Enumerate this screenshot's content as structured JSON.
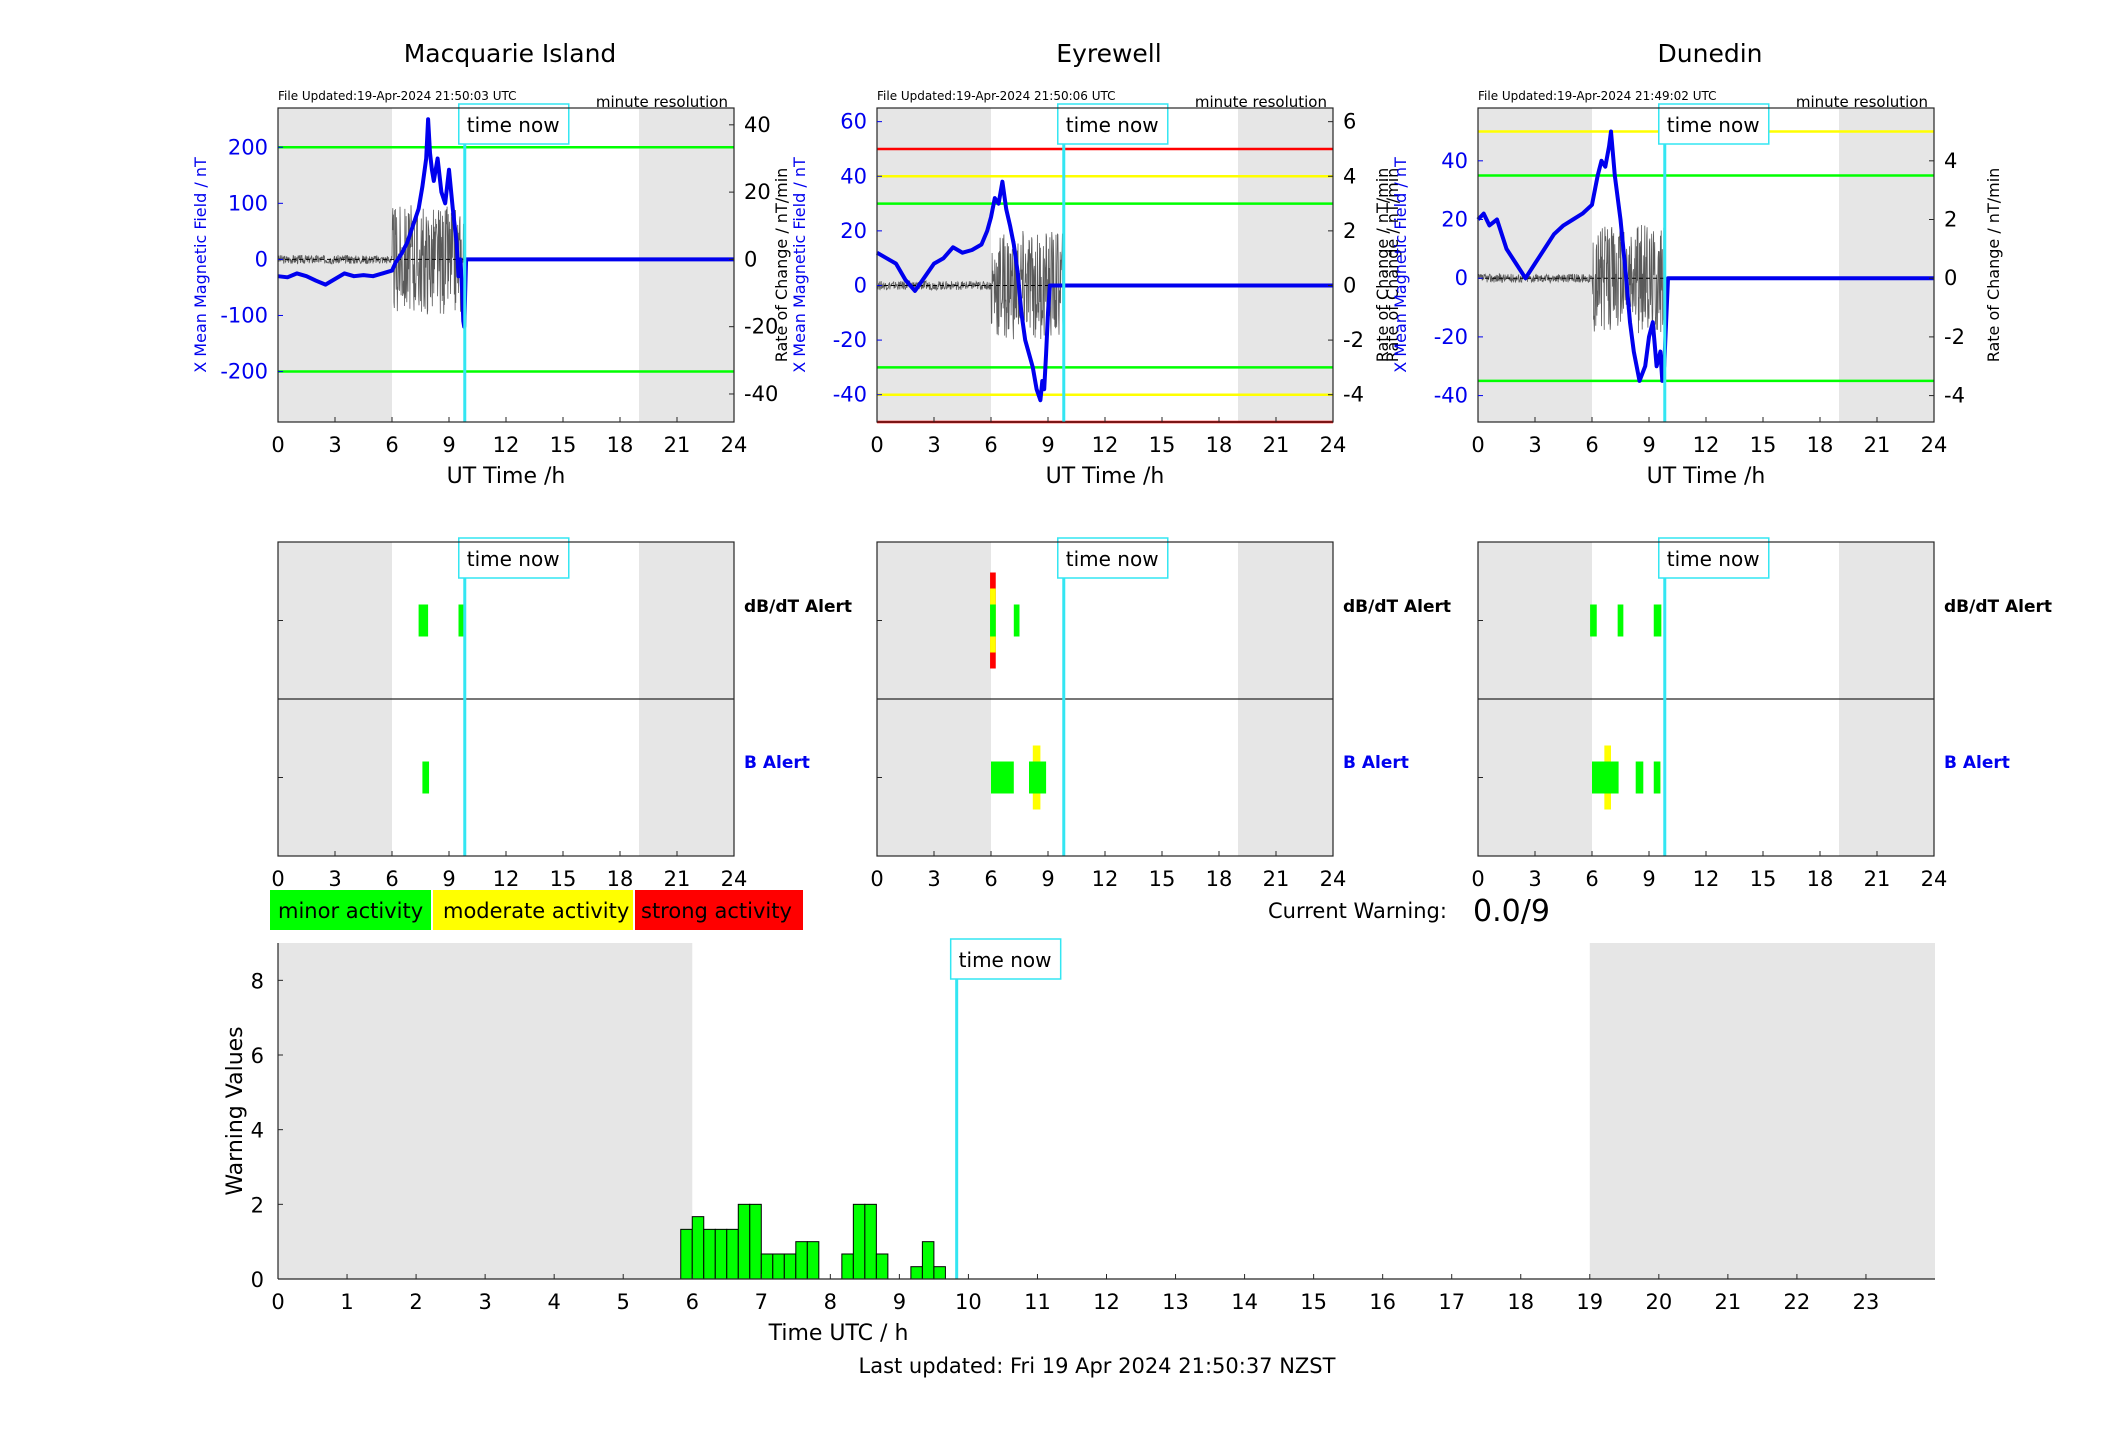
{
  "colors": {
    "x_field": "#0000ee",
    "roc_trace": "#5a5a5a",
    "time_now": "#33e6f2",
    "minor": "#00ff00",
    "moderate": "#ffff00",
    "strong": "#ff0000",
    "night_shade": "#e6e6e6"
  },
  "time_now_label": "time now",
  "time_now_hour": 9.83,
  "legend": {
    "minor": "minor activity",
    "moderate": "moderate activity",
    "strong": "strong activity"
  },
  "current_warning": {
    "label": "Current Warning:",
    "value": "0.0/9"
  },
  "footer": "Last updated: Fri 19 Apr 2024 21:50:37 NZST",
  "chart_data": [
    {
      "type": "line",
      "station": "Macquarie Island",
      "title": "Macquarie Island",
      "file_updated": "File Updated:19-Apr-2024 21:50:03 UTC",
      "resolution": "minute resolution",
      "xlabel": "UT Time /h",
      "ylabel_left": "X Mean Magnetic Field / nT",
      "ylabel_right": "",
      "xlim": [
        0,
        24
      ],
      "ylim_left": [
        -290,
        270
      ],
      "ylim_right": [
        -48.33,
        45
      ],
      "x_ticks": [
        0,
        3,
        6,
        9,
        12,
        15,
        18,
        21,
        24
      ],
      "y_ticks_left": [
        -200,
        -100,
        0,
        100,
        200
      ],
      "y_ticks_right": [
        -40,
        -20,
        0,
        20,
        40
      ],
      "night_shading": [
        [
          0,
          6
        ],
        [
          19,
          24
        ]
      ],
      "threshold_lines": [
        {
          "value": 200,
          "level": "minor"
        },
        {
          "value": -200,
          "level": "minor"
        }
      ],
      "series": [
        {
          "axis": "left",
          "color_key": "x_field",
          "x": [
            0,
            0.5,
            1,
            1.5,
            2,
            2.5,
            3,
            3.5,
            4,
            4.5,
            5,
            5.5,
            6,
            6.2,
            6.5,
            6.8,
            7,
            7.2,
            7.4,
            7.6,
            7.8,
            7.9,
            8,
            8.1,
            8.2,
            8.4,
            8.6,
            8.8,
            9,
            9.2,
            9.4,
            9.5,
            9.6,
            9.7,
            9.75,
            9.8,
            9.9,
            10,
            12,
            15,
            18,
            21,
            24
          ],
          "y": [
            -30,
            -32,
            -25,
            -30,
            -38,
            -45,
            -35,
            -25,
            -30,
            -28,
            -30,
            -25,
            -20,
            -5,
            10,
            30,
            50,
            70,
            90,
            130,
            180,
            250,
            190,
            160,
            140,
            180,
            120,
            100,
            160,
            90,
            30,
            -30,
            0,
            -60,
            -110,
            -120,
            0,
            0,
            0,
            0,
            0,
            0,
            0
          ]
        }
      ]
    },
    {
      "type": "line",
      "station": "Eyrewell",
      "title": "Eyrewell",
      "file_updated": "File Updated:19-Apr-2024 21:50:06 UTC",
      "resolution": "minute resolution",
      "xlabel": "UT Time /h",
      "ylabel_left": "X Mean Magnetic Field / nT",
      "ylabel_right": "Rate of Change / nT/min",
      "ylabel_left_neighbor": "Rate of Change / nT/min",
      "xlim": [
        0,
        24
      ],
      "ylim_left": [
        -50,
        65
      ],
      "ylim_right": [
        -5,
        6.5
      ],
      "x_ticks": [
        0,
        3,
        6,
        9,
        12,
        15,
        18,
        21,
        24
      ],
      "y_ticks_left": [
        -40,
        -20,
        0,
        20,
        40,
        60
      ],
      "y_ticks_right": [
        -4,
        -2,
        0,
        2,
        4,
        6
      ],
      "night_shading": [
        [
          0,
          6
        ],
        [
          19,
          24
        ]
      ],
      "threshold_lines": [
        {
          "value": 50,
          "level": "strong"
        },
        {
          "value": 40,
          "level": "moderate"
        },
        {
          "value": 30,
          "level": "minor"
        },
        {
          "value": -30,
          "level": "minor"
        },
        {
          "value": -40,
          "level": "moderate"
        },
        {
          "value": -50,
          "level": "strong"
        }
      ],
      "series": [
        {
          "axis": "left",
          "color_key": "x_field",
          "x": [
            0,
            0.5,
            1,
            1.5,
            2,
            2.5,
            3,
            3.5,
            4,
            4.5,
            5,
            5.5,
            5.8,
            6,
            6.2,
            6.4,
            6.6,
            6.8,
            7,
            7.2,
            7.4,
            7.6,
            7.8,
            8,
            8.2,
            8.4,
            8.6,
            8.7,
            8.8,
            8.9,
            9,
            9.1,
            10,
            12,
            15,
            18,
            21,
            24
          ],
          "y": [
            12,
            10,
            8,
            2,
            -2,
            3,
            8,
            10,
            14,
            12,
            13,
            15,
            20,
            25,
            32,
            30,
            38,
            28,
            22,
            15,
            5,
            -10,
            -20,
            -25,
            -30,
            -38,
            -42,
            -35,
            -38,
            -25,
            -10,
            0,
            0,
            0,
            0,
            0,
            0,
            0
          ]
        }
      ]
    },
    {
      "type": "line",
      "station": "Dunedin",
      "title": "Dunedin",
      "file_updated": "File Updated:19-Apr-2024 21:49:02 UTC",
      "resolution": "minute resolution",
      "xlabel": "UT Time /h",
      "ylabel_left": "X Mean Magnetic Field / nT",
      "ylabel_right": "Rate of Change / nT/min",
      "ylabel_left_neighbor": "Rate of Change / nT/min",
      "xlim": [
        0,
        24
      ],
      "ylim_left": [
        -49,
        58
      ],
      "ylim_right": [
        -4.9,
        5.8
      ],
      "x_ticks": [
        0,
        3,
        6,
        9,
        12,
        15,
        18,
        21,
        24
      ],
      "y_ticks_left": [
        -40,
        -20,
        0,
        20,
        40
      ],
      "y_ticks_right": [
        -4,
        -2,
        0,
        2,
        4
      ],
      "night_shading": [
        [
          0,
          6
        ],
        [
          19,
          24
        ]
      ],
      "threshold_lines": [
        {
          "value": 50,
          "level": "moderate"
        },
        {
          "value": 35,
          "level": "minor"
        },
        {
          "value": -35,
          "level": "minor"
        }
      ],
      "series": [
        {
          "axis": "left",
          "color_key": "x_field",
          "x": [
            0,
            0.3,
            0.6,
            1,
            1.5,
            2,
            2.5,
            3,
            3.5,
            4,
            4.5,
            5,
            5.5,
            6,
            6.3,
            6.5,
            6.7,
            6.9,
            7,
            7.2,
            7.5,
            7.8,
            8,
            8.2,
            8.5,
            8.8,
            9,
            9.2,
            9.4,
            9.6,
            9.7,
            9.8,
            10,
            12,
            15,
            18,
            21,
            24
          ],
          "y": [
            20,
            22,
            18,
            20,
            10,
            5,
            0,
            5,
            10,
            15,
            18,
            20,
            22,
            25,
            35,
            40,
            38,
            45,
            50,
            35,
            20,
            0,
            -15,
            -25,
            -35,
            -30,
            -20,
            -15,
            -30,
            -25,
            -35,
            -30,
            0,
            0,
            0,
            0,
            0,
            0
          ]
        }
      ]
    },
    {
      "type": "bar",
      "station": "Macquarie Island",
      "alerts": true,
      "xlim": [
        0,
        24
      ],
      "x_ticks": [
        0,
        3,
        6,
        9,
        12,
        15,
        18,
        21,
        24
      ],
      "rows": [
        "dB/dT Alert",
        "B Alert"
      ],
      "night_shading": [
        [
          0,
          6
        ],
        [
          19,
          24
        ]
      ],
      "segments": [
        {
          "row": 0,
          "start": 7.4,
          "end": 7.9,
          "level": "minor",
          "half_height": 1
        },
        {
          "row": 0,
          "start": 9.5,
          "end": 9.8,
          "level": "minor",
          "half_height": 1
        },
        {
          "row": 1,
          "start": 7.6,
          "end": 7.95,
          "level": "minor",
          "half_height": 1
        }
      ]
    },
    {
      "type": "bar",
      "station": "Eyrewell",
      "alerts": true,
      "xlim": [
        0,
        24
      ],
      "x_ticks": [
        0,
        3,
        6,
        9,
        12,
        15,
        18,
        21,
        24
      ],
      "rows": [
        "dB/dT Alert",
        "B Alert"
      ],
      "night_shading": [
        [
          0,
          6
        ],
        [
          19,
          24
        ]
      ],
      "segments": [
        {
          "row": 0,
          "start": 5.95,
          "end": 6.25,
          "level": "strong",
          "half_height": 3
        },
        {
          "row": 0,
          "start": 5.95,
          "end": 6.25,
          "level": "moderate",
          "half_height": 2
        },
        {
          "row": 0,
          "start": 5.95,
          "end": 6.25,
          "level": "minor",
          "half_height": 1
        },
        {
          "row": 0,
          "start": 7.2,
          "end": 7.5,
          "level": "minor",
          "half_height": 1
        },
        {
          "row": 1,
          "start": 6.0,
          "end": 7.2,
          "level": "minor",
          "half_height": 1
        },
        {
          "row": 1,
          "start": 8.2,
          "end": 8.6,
          "level": "moderate",
          "half_height": 2
        },
        {
          "row": 1,
          "start": 8.0,
          "end": 8.9,
          "level": "minor",
          "half_height": 1
        }
      ]
    },
    {
      "type": "bar",
      "station": "Dunedin",
      "alerts": true,
      "xlim": [
        0,
        24
      ],
      "x_ticks": [
        0,
        3,
        6,
        9,
        12,
        15,
        18,
        21,
        24
      ],
      "rows": [
        "dB/dT Alert",
        "B Alert"
      ],
      "night_shading": [
        [
          0,
          6
        ],
        [
          19,
          24
        ]
      ],
      "segments": [
        {
          "row": 0,
          "start": 5.9,
          "end": 6.25,
          "level": "minor",
          "half_height": 1
        },
        {
          "row": 0,
          "start": 7.35,
          "end": 7.65,
          "level": "minor",
          "half_height": 1
        },
        {
          "row": 0,
          "start": 9.25,
          "end": 9.65,
          "level": "minor",
          "half_height": 1
        },
        {
          "row": 1,
          "start": 6.65,
          "end": 7.0,
          "level": "moderate",
          "half_height": 2
        },
        {
          "row": 1,
          "start": 6.0,
          "end": 7.4,
          "level": "minor",
          "half_height": 1
        },
        {
          "row": 1,
          "start": 8.3,
          "end": 8.7,
          "level": "minor",
          "half_height": 1
        },
        {
          "row": 1,
          "start": 9.25,
          "end": 9.6,
          "level": "minor",
          "half_height": 1
        }
      ]
    },
    {
      "type": "bar",
      "title": "",
      "xlabel": "Time UTC / h",
      "ylabel": "Warning Values",
      "xlim": [
        0,
        24
      ],
      "ylim": [
        0,
        9
      ],
      "x_ticks": [
        0,
        1,
        2,
        3,
        4,
        5,
        6,
        7,
        8,
        9,
        10,
        11,
        12,
        13,
        14,
        15,
        16,
        17,
        18,
        19,
        20,
        21,
        22,
        23
      ],
      "y_ticks": [
        0,
        2,
        4,
        6,
        8
      ],
      "night_shading": [
        [
          0,
          6
        ],
        [
          19,
          24
        ]
      ],
      "bar_width_h": 0.1667,
      "x": [
        5.8333,
        6.0,
        6.1667,
        6.3333,
        6.5,
        6.6667,
        6.8333,
        7.0,
        7.1667,
        7.3333,
        7.5,
        7.6667,
        8.1667,
        8.3333,
        8.5,
        8.6667,
        9.1667,
        9.3333,
        9.5
      ],
      "values": [
        1.33,
        1.67,
        1.33,
        1.33,
        1.33,
        2,
        2,
        0.67,
        0.67,
        0.67,
        1,
        1,
        0.67,
        2,
        2,
        0.67,
        0.33,
        1,
        0.33
      ]
    }
  ]
}
